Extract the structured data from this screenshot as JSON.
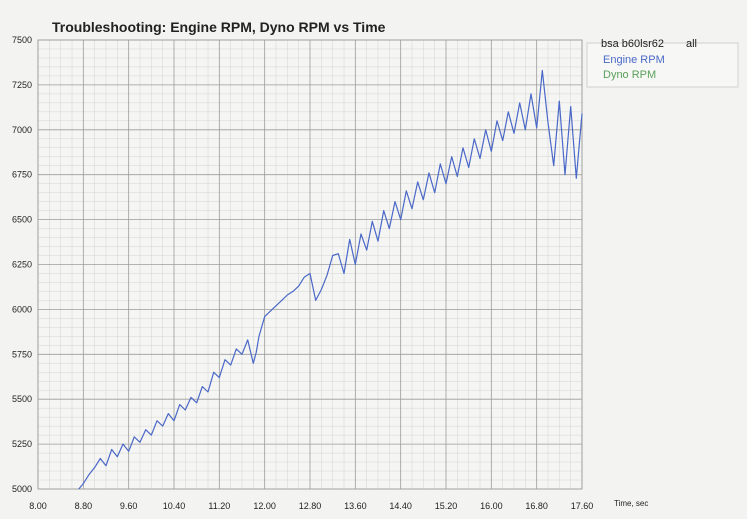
{
  "chart_data": {
    "type": "line",
    "title": "Troubleshooting: Engine RPM, Dyno RPM vs Time",
    "xlabel": "Time, sec",
    "ylabel": "",
    "xlim": [
      8.0,
      17.6
    ],
    "ylim": [
      5000,
      7500
    ],
    "x_ticks": [
      "8.00",
      "8.80",
      "9.60",
      "10.40",
      "11.20",
      "12.00",
      "12.80",
      "13.60",
      "14.40",
      "15.20",
      "16.00",
      "16.80",
      "17.60"
    ],
    "x_tick_values": [
      8.0,
      8.8,
      9.6,
      10.4,
      11.2,
      12.0,
      12.8,
      13.6,
      14.4,
      15.2,
      16.0,
      16.8,
      17.6
    ],
    "y_ticks": [
      "5000",
      "5250",
      "5500",
      "5750",
      "6000",
      "6250",
      "6500",
      "6750",
      "7000",
      "7250",
      "7500"
    ],
    "y_tick_values": [
      5000,
      5250,
      5500,
      5750,
      6000,
      6250,
      6500,
      6750,
      7000,
      7250,
      7500
    ],
    "grid": true,
    "legend": {
      "title": "bsa b60lsr62",
      "selector": "all",
      "position": "top-right",
      "entries": [
        "Engine RPM",
        "Dyno RPM"
      ]
    },
    "series": [
      {
        "name": "Engine RPM",
        "color": "#4a68c8",
        "points": [
          [
            8.72,
            5000
          ],
          [
            8.8,
            5030
          ],
          [
            8.9,
            5080
          ],
          [
            9.0,
            5120
          ],
          [
            9.1,
            5170
          ],
          [
            9.2,
            5130
          ],
          [
            9.3,
            5220
          ],
          [
            9.4,
            5180
          ],
          [
            9.5,
            5250
          ],
          [
            9.6,
            5210
          ],
          [
            9.7,
            5290
          ],
          [
            9.8,
            5260
          ],
          [
            9.9,
            5330
          ],
          [
            10.0,
            5300
          ],
          [
            10.1,
            5380
          ],
          [
            10.2,
            5350
          ],
          [
            10.3,
            5420
          ],
          [
            10.4,
            5380
          ],
          [
            10.5,
            5470
          ],
          [
            10.6,
            5440
          ],
          [
            10.7,
            5510
          ],
          [
            10.8,
            5480
          ],
          [
            10.9,
            5570
          ],
          [
            11.0,
            5540
          ],
          [
            11.1,
            5650
          ],
          [
            11.2,
            5620
          ],
          [
            11.3,
            5720
          ],
          [
            11.4,
            5690
          ],
          [
            11.5,
            5780
          ],
          [
            11.6,
            5750
          ],
          [
            11.7,
            5830
          ],
          [
            11.8,
            5700
          ],
          [
            11.85,
            5760
          ],
          [
            11.9,
            5850
          ],
          [
            12.0,
            5960
          ],
          [
            12.1,
            5990
          ],
          [
            12.2,
            6020
          ],
          [
            12.3,
            6050
          ],
          [
            12.4,
            6080
          ],
          [
            12.5,
            6100
          ],
          [
            12.6,
            6130
          ],
          [
            12.7,
            6180
          ],
          [
            12.8,
            6200
          ],
          [
            12.9,
            6050
          ],
          [
            13.0,
            6110
          ],
          [
            13.1,
            6190
          ],
          [
            13.2,
            6300
          ],
          [
            13.3,
            6310
          ],
          [
            13.4,
            6200
          ],
          [
            13.5,
            6390
          ],
          [
            13.6,
            6250
          ],
          [
            13.7,
            6420
          ],
          [
            13.8,
            6330
          ],
          [
            13.9,
            6490
          ],
          [
            14.0,
            6380
          ],
          [
            14.1,
            6550
          ],
          [
            14.2,
            6450
          ],
          [
            14.3,
            6600
          ],
          [
            14.4,
            6500
          ],
          [
            14.5,
            6660
          ],
          [
            14.6,
            6560
          ],
          [
            14.7,
            6710
          ],
          [
            14.8,
            6610
          ],
          [
            14.9,
            6760
          ],
          [
            15.0,
            6650
          ],
          [
            15.1,
            6810
          ],
          [
            15.2,
            6700
          ],
          [
            15.3,
            6850
          ],
          [
            15.4,
            6740
          ],
          [
            15.5,
            6900
          ],
          [
            15.6,
            6790
          ],
          [
            15.7,
            6950
          ],
          [
            15.8,
            6840
          ],
          [
            15.9,
            7000
          ],
          [
            16.0,
            6880
          ],
          [
            16.1,
            7050
          ],
          [
            16.2,
            6940
          ],
          [
            16.3,
            7100
          ],
          [
            16.4,
            6980
          ],
          [
            16.5,
            7150
          ],
          [
            16.6,
            7000
          ],
          [
            16.7,
            7200
          ],
          [
            16.8,
            7010
          ],
          [
            16.9,
            7330
          ],
          [
            17.0,
            7040
          ],
          [
            17.1,
            6800
          ],
          [
            17.2,
            7160
          ],
          [
            17.3,
            6750
          ],
          [
            17.4,
            7130
          ],
          [
            17.5,
            6730
          ],
          [
            17.6,
            7090
          ]
        ]
      },
      {
        "name": "Dyno RPM",
        "color": "#5aa05a",
        "points": []
      }
    ]
  }
}
